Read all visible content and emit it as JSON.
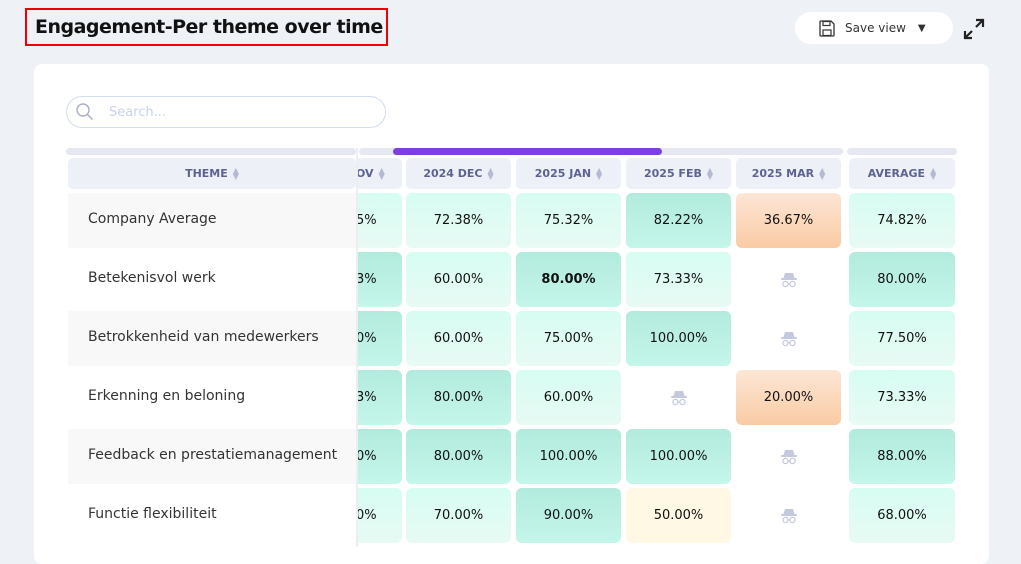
{
  "header": {
    "title": "Engagement-Per theme over time",
    "save_view_label": "Save view"
  },
  "search": {
    "placeholder": "Search..."
  },
  "colors": {
    "accent": "#7b3fe4",
    "light": "#d6fdf2",
    "medium": "#b2ebdd",
    "low": "#f9cba3",
    "mid_low": "#fff8e4"
  },
  "table": {
    "theme_header": "THEME",
    "columns": [
      "OV",
      "2024 DEC",
      "2025 JAN",
      "2025 FEB",
      "2025 MAR",
      "AVERAGE"
    ],
    "rows": [
      {
        "theme": "Company Average",
        "cells": [
          {
            "v": "5%",
            "c": "light"
          },
          {
            "v": "72.38%",
            "c": "light"
          },
          {
            "v": "75.32%",
            "c": "light"
          },
          {
            "v": "82.22%",
            "c": "med"
          },
          {
            "v": "36.67%",
            "c": "orange"
          },
          {
            "v": "74.82%",
            "c": "light"
          }
        ]
      },
      {
        "theme": "Betekenisvol werk",
        "cells": [
          {
            "v": "3%",
            "c": "med"
          },
          {
            "v": "60.00%",
            "c": "light"
          },
          {
            "v": "80.00%",
            "c": "med bold"
          },
          {
            "v": "73.33%",
            "c": "light"
          },
          {
            "v": null,
            "c": "none"
          },
          {
            "v": "80.00%",
            "c": "med"
          }
        ]
      },
      {
        "theme": "Betrokkenheid van medewerkers",
        "cells": [
          {
            "v": "0%",
            "c": "med"
          },
          {
            "v": "60.00%",
            "c": "light"
          },
          {
            "v": "75.00%",
            "c": "light"
          },
          {
            "v": "100.00%",
            "c": "med"
          },
          {
            "v": null,
            "c": "none"
          },
          {
            "v": "77.50%",
            "c": "light"
          }
        ]
      },
      {
        "theme": "Erkenning en beloning",
        "cells": [
          {
            "v": "3%",
            "c": "med"
          },
          {
            "v": "80.00%",
            "c": "med"
          },
          {
            "v": "60.00%",
            "c": "light"
          },
          {
            "v": null,
            "c": "none"
          },
          {
            "v": "20.00%",
            "c": "orange"
          },
          {
            "v": "73.33%",
            "c": "light"
          }
        ]
      },
      {
        "theme": "Feedback en prestatiemanagement",
        "cells": [
          {
            "v": "0%",
            "c": "med"
          },
          {
            "v": "80.00%",
            "c": "med"
          },
          {
            "v": "100.00%",
            "c": "med"
          },
          {
            "v": "100.00%",
            "c": "med"
          },
          {
            "v": null,
            "c": "none"
          },
          {
            "v": "88.00%",
            "c": "med"
          }
        ]
      },
      {
        "theme": "Functie flexibiliteit",
        "cells": [
          {
            "v": "0%",
            "c": "light"
          },
          {
            "v": "70.00%",
            "c": "light"
          },
          {
            "v": "90.00%",
            "c": "med"
          },
          {
            "v": "50.00%",
            "c": "yellow"
          },
          {
            "v": null,
            "c": "none"
          },
          {
            "v": "68.00%",
            "c": "light"
          }
        ]
      }
    ],
    "hidden_icon": "incognito-icon"
  }
}
